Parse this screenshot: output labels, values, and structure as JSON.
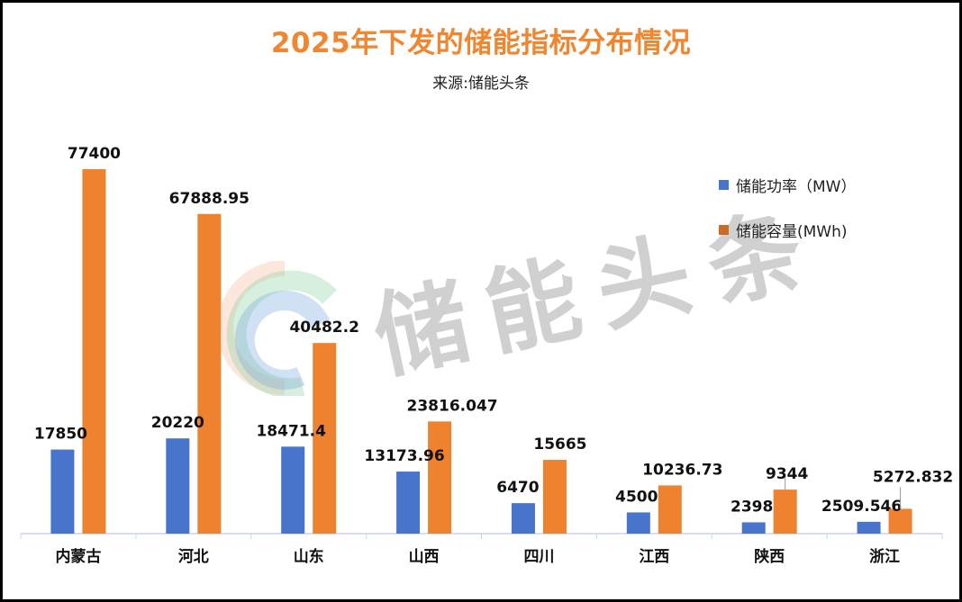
{
  "title": "2025年下发的储能指标分布情况",
  "subtitle": "来源:储能头条",
  "watermark_text": "储能头条",
  "colors": {
    "power": "#4874CB",
    "capacity": "#EE822F",
    "title": "#F08630",
    "axis": "#C9D4E8"
  },
  "chart_data": {
    "type": "bar",
    "title": "2025年下发的储能指标分布情况",
    "subtitle": "来源:储能头条",
    "xlabel": "",
    "ylabel": "",
    "ylim": [
      0,
      80000
    ],
    "grid": false,
    "legend_position": "right",
    "categories": [
      "内蒙古",
      "河北",
      "山东",
      "山西",
      "四川",
      "江西",
      "陕西",
      "浙江"
    ],
    "series": [
      {
        "name": "储能功率（MW）",
        "values": [
          17850,
          20220,
          18471.4,
          13173.96,
          6470,
          4500,
          2398,
          2509.546
        ],
        "labels": [
          "17850",
          "20220",
          "18471.4",
          "13173.96",
          "6470",
          "4500",
          "2398",
          "2509.546"
        ]
      },
      {
        "name": "储能容量(MWh)",
        "values": [
          77400,
          67888.95,
          40482.2,
          23816.047,
          15665,
          10236.73,
          9344,
          5272.832
        ],
        "labels": [
          "77400",
          "67888.95",
          "40482.2",
          "23816.047",
          "15665",
          "10236.73",
          "9344",
          "5272.832"
        ]
      }
    ]
  }
}
